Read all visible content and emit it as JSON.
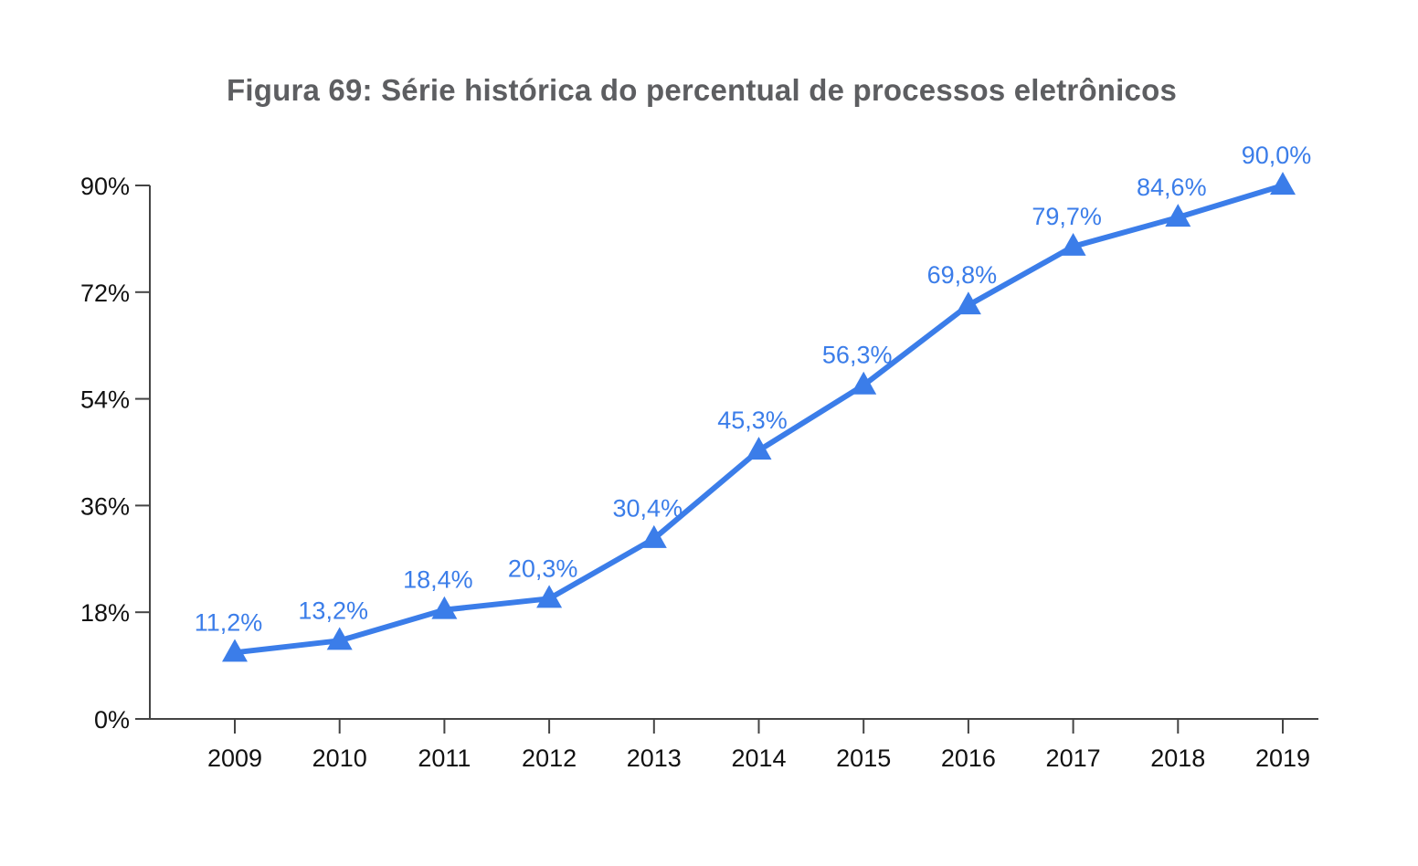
{
  "chart_data": {
    "type": "line",
    "title": "Figura 69: Série histórica do percentual de processos eletrônicos",
    "xlabel": "",
    "ylabel": "",
    "categories": [
      "2009",
      "2010",
      "2011",
      "2012",
      "2013",
      "2014",
      "2015",
      "2016",
      "2017",
      "2018",
      "2019"
    ],
    "series": [
      {
        "values": [
          11.2,
          13.2,
          18.4,
          20.3,
          30.4,
          45.3,
          56.3,
          69.8,
          79.7,
          84.6,
          90.0
        ],
        "labels": [
          "11,2%",
          "13,2%",
          "18,4%",
          "20,3%",
          "30,4%",
          "45,3%",
          "56,3%",
          "69,8%",
          "79,7%",
          "84,6%",
          "90,0%"
        ],
        "color": "#3b7de9",
        "marker": "triangle"
      }
    ],
    "yticks": [
      0,
      18,
      36,
      54,
      72,
      90
    ],
    "ytick_labels": [
      "0%",
      "18%",
      "36%",
      "54%",
      "72%",
      "90%"
    ],
    "ylim": [
      0,
      90
    ],
    "grid": false,
    "legend": "none",
    "axis_color": "#444444",
    "label_color": "#3b7de9"
  }
}
